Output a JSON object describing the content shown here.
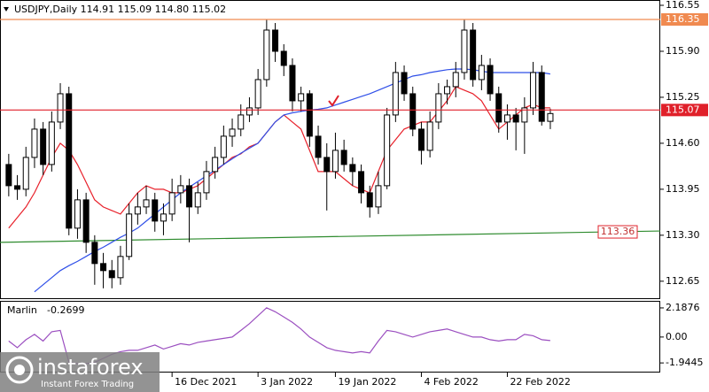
{
  "chart_data": [
    {
      "type": "candlestick",
      "title": "USDJPY,Daily  114.91 115.09 114.80 115.02",
      "categories": [
        null,
        null,
        null,
        null,
        null,
        null,
        null,
        null,
        null,
        null,
        null,
        null,
        null,
        null,
        null,
        null,
        null,
        null,
        null,
        "16 Dec 2021",
        null,
        null,
        null,
        null,
        null,
        null,
        null,
        null,
        null,
        "3 Jan 2022",
        null,
        null,
        null,
        null,
        null,
        null,
        null,
        null,
        "19 Jan 2022",
        null,
        null,
        null,
        null,
        null,
        null,
        null,
        null,
        null,
        "4 Feb 2022",
        null,
        null,
        null,
        null,
        null,
        null,
        null,
        null,
        null,
        "22 Feb 2022",
        null,
        null,
        null,
        null,
        null
      ],
      "candles": [
        [
          114.3,
          114.45,
          113.85,
          114.0
        ],
        [
          114.0,
          114.15,
          113.8,
          113.95
        ],
        [
          113.95,
          114.55,
          113.85,
          114.4
        ],
        [
          114.4,
          114.95,
          114.25,
          114.8
        ],
        [
          114.8,
          114.9,
          114.15,
          114.3
        ],
        [
          114.3,
          115.05,
          114.2,
          114.9
        ],
        [
          114.9,
          115.45,
          114.8,
          115.3
        ],
        [
          115.3,
          115.4,
          113.3,
          113.4
        ],
        [
          113.4,
          113.95,
          113.25,
          113.8
        ],
        [
          113.8,
          113.9,
          113.05,
          113.2
        ],
        [
          113.2,
          113.3,
          112.6,
          112.9
        ],
        [
          112.9,
          113.05,
          112.55,
          112.8
        ],
        [
          112.8,
          112.95,
          112.55,
          112.7
        ],
        [
          112.7,
          113.15,
          112.6,
          113.0
        ],
        [
          113.0,
          113.75,
          112.95,
          113.6
        ],
        [
          113.6,
          113.9,
          113.45,
          113.7
        ],
        [
          113.7,
          114.0,
          113.6,
          113.8
        ],
        [
          113.8,
          113.9,
          113.35,
          113.5
        ],
        [
          113.5,
          113.75,
          113.3,
          113.6
        ],
        [
          113.6,
          114.1,
          113.5,
          113.9
        ],
        [
          113.9,
          114.15,
          113.75,
          114.0
        ],
        [
          114.0,
          114.1,
          113.2,
          113.7
        ],
        [
          113.7,
          114.05,
          113.6,
          113.9
        ],
        [
          113.9,
          114.35,
          113.8,
          114.2
        ],
        [
          114.2,
          114.55,
          114.1,
          114.4
        ],
        [
          114.4,
          114.85,
          114.3,
          114.7
        ],
        [
          114.7,
          114.95,
          114.55,
          114.8
        ],
        [
          114.8,
          115.15,
          114.7,
          115.0
        ],
        [
          115.0,
          115.25,
          114.9,
          115.1
        ],
        [
          115.1,
          115.65,
          115.0,
          115.5
        ],
        [
          115.5,
          116.35,
          115.4,
          116.2
        ],
        [
          116.2,
          116.3,
          115.75,
          115.9
        ],
        [
          115.9,
          116.0,
          115.55,
          115.7
        ],
        [
          115.7,
          115.8,
          115.05,
          115.2
        ],
        [
          115.2,
          115.4,
          115.05,
          115.3
        ],
        [
          115.3,
          115.35,
          114.55,
          114.7
        ],
        [
          114.7,
          114.85,
          114.3,
          114.4
        ],
        [
          114.4,
          114.6,
          113.65,
          114.2
        ],
        [
          114.2,
          114.75,
          114.1,
          114.5
        ],
        [
          114.5,
          114.65,
          114.2,
          114.3
        ],
        [
          114.3,
          114.4,
          114.0,
          114.2
        ],
        [
          114.2,
          114.3,
          113.75,
          113.9
        ],
        [
          113.9,
          114.0,
          113.55,
          113.7
        ],
        [
          113.7,
          114.2,
          113.6,
          114.0
        ],
        [
          114.0,
          115.1,
          113.95,
          115.0
        ],
        [
          115.0,
          115.75,
          114.9,
          115.6
        ],
        [
          115.6,
          115.7,
          115.2,
          115.3
        ],
        [
          115.3,
          115.4,
          114.7,
          114.8
        ],
        [
          114.8,
          114.9,
          114.3,
          114.5
        ],
        [
          114.5,
          115.05,
          114.4,
          114.9
        ],
        [
          114.9,
          115.45,
          114.8,
          115.3
        ],
        [
          115.3,
          115.5,
          115.15,
          115.4
        ],
        [
          115.4,
          115.75,
          115.25,
          115.6
        ],
        [
          115.6,
          116.35,
          115.5,
          116.2
        ],
        [
          116.2,
          116.3,
          115.4,
          115.5
        ],
        [
          115.5,
          115.85,
          115.35,
          115.7
        ],
        [
          115.7,
          115.8,
          115.2,
          115.3
        ],
        [
          115.3,
          115.4,
          114.75,
          114.9
        ],
        [
          114.9,
          115.15,
          114.65,
          115.0
        ],
        [
          115.0,
          115.1,
          114.5,
          114.9
        ],
        [
          114.9,
          115.25,
          114.45,
          115.1
        ],
        [
          115.1,
          115.75,
          115.0,
          115.6
        ],
        [
          115.6,
          115.7,
          114.85,
          114.91
        ],
        [
          114.91,
          115.09,
          114.8,
          115.02
        ]
      ],
      "series": [
        {
          "color": "#e8202a",
          "values": [
            113.4,
            113.55,
            113.7,
            113.9,
            114.15,
            114.4,
            114.6,
            114.5,
            114.3,
            114.05,
            113.8,
            113.7,
            113.65,
            113.6,
            113.75,
            113.9,
            114.0,
            113.95,
            113.95,
            113.9,
            113.9,
            113.95,
            114.0,
            114.1,
            114.2,
            114.3,
            114.4,
            114.45,
            114.55,
            114.6,
            114.75,
            114.9,
            115.0,
            114.9,
            114.8,
            114.5,
            114.2,
            114.2,
            114.2,
            114.1,
            114.0,
            113.95,
            113.9,
            114.2,
            114.5,
            114.65,
            114.8,
            114.85,
            114.9,
            114.9,
            115.05,
            115.2,
            115.4,
            115.35,
            115.3,
            115.2,
            115.0,
            114.8,
            114.9,
            115.0,
            115.1,
            115.15,
            115.1,
            115.1
          ]
        },
        {
          "color": "#2f4fe8",
          "values": [
            null,
            null,
            null,
            112.5,
            112.6,
            112.7,
            112.8,
            112.87,
            112.93,
            113.0,
            113.07,
            113.13,
            113.2,
            113.27,
            113.33,
            113.4,
            113.5,
            113.6,
            113.7,
            113.8,
            113.9,
            113.98,
            114.06,
            114.14,
            114.22,
            114.3,
            114.38,
            114.46,
            114.53,
            114.6,
            114.75,
            114.9,
            115.0,
            115.03,
            115.05,
            115.07,
            115.08,
            115.1,
            115.14,
            115.18,
            115.22,
            115.26,
            115.3,
            115.35,
            115.4,
            115.45,
            115.5,
            115.55,
            115.57,
            115.6,
            115.62,
            115.64,
            115.65,
            115.65,
            115.64,
            115.62,
            115.6,
            115.6,
            115.6,
            115.6,
            115.6,
            115.6,
            115.6,
            115.58
          ]
        }
      ],
      "levels": [
        {
          "value": 116.35,
          "color": "#f08a50"
        },
        {
          "value": 115.07,
          "color": "#e0202a"
        }
      ],
      "trendline": {
        "start": 113.2,
        "end": 113.36,
        "color": "#2e8b2e"
      },
      "ylim": [
        112.41,
        116.575
      ],
      "yticks": [
        116.55,
        {
          "value": 115.9,
          "label": "115.90"
        },
        115.25,
        {
          "value": 114.6,
          "label": "114.60"
        },
        113.95,
        {
          "value": 113.3,
          "label": "113.30"
        },
        112.65
      ]
    },
    {
      "type": "line",
      "title": "Marlin",
      "series": [
        {
          "color": "#9b4fc0",
          "values": [
            -0.3,
            -0.8,
            -0.2,
            0.2,
            -0.3,
            0.4,
            0.5,
            -1.9,
            -2.0,
            -2.0,
            -1.9,
            -1.6,
            -1.3,
            -1.1,
            -1.0,
            -1.0,
            -0.8,
            -0.6,
            -0.9,
            -0.7,
            -0.5,
            -0.6,
            -0.4,
            -0.3,
            -0.2,
            -0.1,
            0.0,
            0.5,
            1.0,
            1.6,
            2.2,
            1.9,
            1.5,
            1.1,
            0.6,
            0.0,
            -0.4,
            -0.8,
            -1.0,
            -1.1,
            -1.2,
            -1.1,
            -1.2,
            -0.3,
            0.5,
            0.4,
            0.2,
            0.0,
            0.2,
            0.4,
            0.5,
            0.6,
            0.4,
            0.2,
            0.0,
            0.0,
            -0.2,
            -0.3,
            -0.2,
            -0.2,
            0.2,
            0.1,
            -0.2,
            -0.2699
          ]
        }
      ],
      "ylim": [
        -2.6,
        2.65
      ],
      "yticks": [
        2.1876,
        {
          "value": 0,
          "label": "0.00"
        },
        -1.9445
      ]
    }
  ],
  "branding": {
    "name": "instaforex",
    "tagline": "Instant Forex Trading"
  }
}
